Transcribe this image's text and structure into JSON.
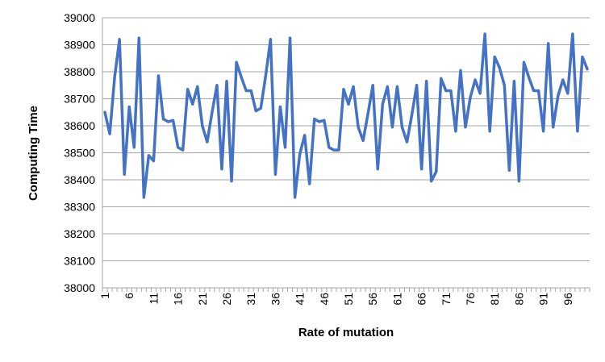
{
  "chart_data": {
    "type": "line",
    "xlabel": "Rate of mutation",
    "ylabel": "Computing Time",
    "ylim": [
      38000,
      39000
    ],
    "yticks": [
      38000,
      38100,
      38200,
      38300,
      38400,
      38500,
      38600,
      38700,
      38800,
      38900,
      39000
    ],
    "xticks": [
      1,
      6,
      11,
      16,
      21,
      26,
      31,
      36,
      41,
      46,
      51,
      56,
      61,
      66,
      71,
      76,
      81,
      86,
      91,
      96
    ],
    "grid": true,
    "legend": "none",
    "color": "#4472C4",
    "x": [
      1,
      2,
      3,
      4,
      5,
      6,
      7,
      8,
      9,
      10,
      11,
      12,
      13,
      14,
      15,
      16,
      17,
      18,
      19,
      20,
      21,
      22,
      23,
      24,
      25,
      26,
      27,
      28,
      29,
      30,
      31,
      32,
      33,
      34,
      35,
      36,
      37,
      38,
      39,
      40,
      41,
      42,
      43,
      44,
      45,
      46,
      47,
      48,
      49,
      50,
      51,
      52,
      53,
      54,
      55,
      56,
      57,
      58,
      59,
      60,
      61,
      62,
      63,
      64,
      65,
      66,
      67,
      68,
      69,
      70,
      71,
      72,
      73,
      74,
      75,
      76,
      77,
      78,
      79,
      80,
      81,
      82,
      83,
      84,
      85,
      86,
      87,
      88,
      89,
      90,
      91,
      92,
      93,
      94,
      95,
      96,
      97,
      98,
      99,
      100
    ],
    "values": [
      38650,
      38570,
      38780,
      38920,
      38420,
      38670,
      38520,
      38925,
      38335,
      38490,
      38470,
      38785,
      38625,
      38615,
      38620,
      38520,
      38510,
      38735,
      38680,
      38745,
      38600,
      38540,
      38650,
      38750,
      38440,
      38765,
      38395,
      38835,
      38780,
      38730,
      38730,
      38655,
      38665,
      38785,
      38920,
      38420,
      38670,
      38520,
      38925,
      38335,
      38495,
      38565,
      38385,
      38625,
      38615,
      38620,
      38520,
      38510,
      38510,
      38735,
      38680,
      38745,
      38595,
      38545,
      38645,
      38750,
      38440,
      38680,
      38745,
      38595,
      38745,
      38595,
      38540,
      38640,
      38750,
      38440,
      38765,
      38395,
      38430,
      38775,
      38730,
      38730,
      38580,
      38805,
      38595,
      38705,
      38770,
      38720,
      38940,
      38580,
      38855,
      38815,
      38750,
      38435,
      38765,
      38395,
      38835,
      38780,
      38730,
      38730,
      38580,
      38905,
      38595,
      38710,
      38770,
      38720,
      38940,
      38580,
      38855,
      38810
    ]
  }
}
